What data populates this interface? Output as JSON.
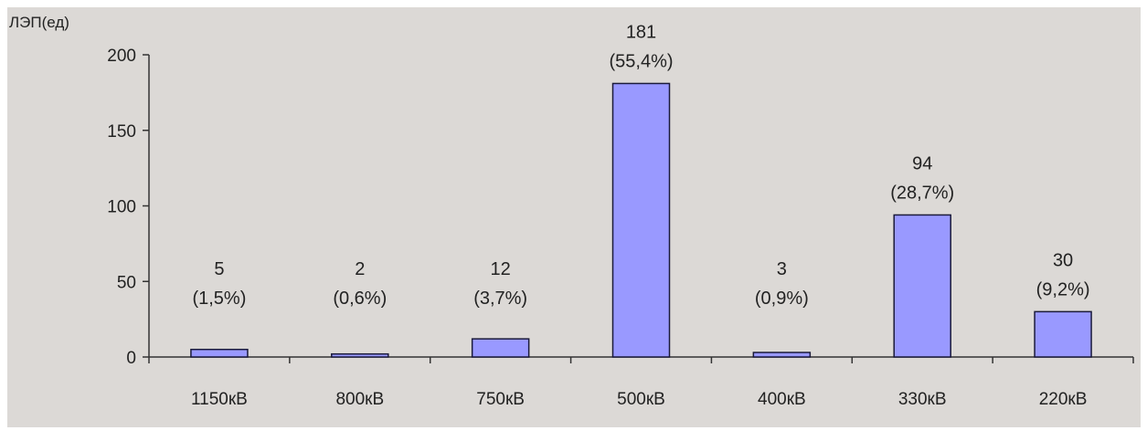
{
  "chart_data": {
    "type": "bar",
    "title": "",
    "xlabel": "",
    "ylabel": "ЛЭП(ед)",
    "ylim": [
      0,
      200
    ],
    "yticks": [
      0,
      50,
      100,
      150,
      200
    ],
    "grid": false,
    "categories": [
      "1150кВ",
      "800кВ",
      "750кВ",
      "500кВ",
      "400кВ",
      "330кВ",
      "220кВ"
    ],
    "values": [
      5,
      2,
      12,
      181,
      3,
      94,
      30
    ],
    "value_labels": [
      "5",
      "2",
      "12",
      "181",
      "3",
      "94",
      "30"
    ],
    "percent_labels": [
      "(1,5%)",
      "(0,6%)",
      "(3,7%)",
      "(55,4%)",
      "(0,9%)",
      "(28,7%)",
      "(9,2%)"
    ]
  },
  "colors": {
    "plot_background": "#dcd9d6",
    "bar_fill": "#9999ff",
    "bar_stroke": "#1a1a3a",
    "axis": "#333333"
  }
}
